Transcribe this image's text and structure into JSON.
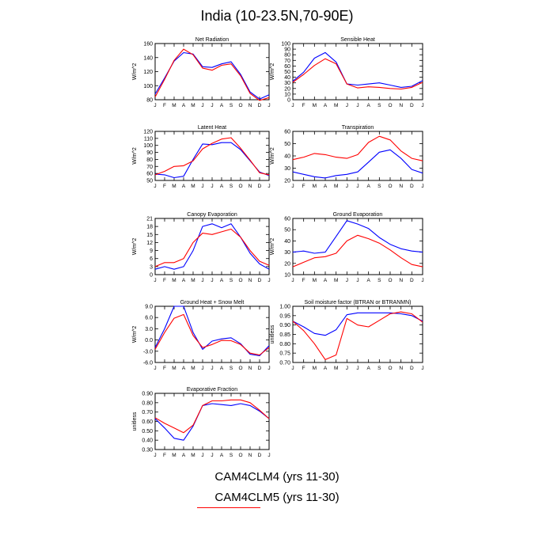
{
  "page": {
    "title": "India (10-23.5N,70-90E)",
    "legend": [
      {
        "label": "CAM4CLM4 (yrs 11-30)",
        "color": "#0000ff"
      },
      {
        "label": "CAM4CLM5 (yrs 11-30)",
        "color": "#ff0000"
      }
    ]
  },
  "chart_data": [
    {
      "type": "line",
      "title": "Net Radiation",
      "ylabel": "W/m^2",
      "x": [
        "J",
        "F",
        "M",
        "A",
        "M",
        "J",
        "J",
        "A",
        "S",
        "O",
        "N",
        "D",
        "J"
      ],
      "ylim": [
        80,
        160
      ],
      "yticks": [
        "80",
        "100",
        "120",
        "140",
        "160"
      ],
      "series": [
        {
          "color": "#0000ff",
          "values": [
            88,
            111,
            135,
            147,
            145,
            127,
            126,
            131,
            134,
            116,
            91,
            81,
            87
          ]
        },
        {
          "color": "#ff0000",
          "values": [
            84,
            109,
            136,
            152,
            144,
            125,
            122,
            129,
            131,
            114,
            89,
            79,
            83
          ]
        }
      ]
    },
    {
      "type": "line",
      "title": "Sensible Heat",
      "ylabel": "W/m^2",
      "x": [
        "J",
        "F",
        "M",
        "A",
        "M",
        "J",
        "J",
        "A",
        "S",
        "O",
        "N",
        "D",
        "J"
      ],
      "ylim": [
        0,
        100
      ],
      "yticks": [
        "0",
        "10",
        "20",
        "30",
        "40",
        "50",
        "60",
        "70",
        "80",
        "90",
        "100"
      ],
      "series": [
        {
          "color": "#0000ff",
          "values": [
            33,
            49,
            74,
            84,
            67,
            28,
            26,
            28,
            30,
            26,
            22,
            24,
            34
          ]
        },
        {
          "color": "#ff0000",
          "values": [
            31,
            45,
            61,
            73,
            64,
            28,
            21,
            23,
            22,
            20,
            19,
            22,
            31
          ]
        }
      ]
    },
    {
      "type": "line",
      "title": "Latent Heat",
      "ylabel": "W/m^2",
      "x": [
        "J",
        "F",
        "M",
        "A",
        "M",
        "J",
        "J",
        "A",
        "S",
        "O",
        "N",
        "D",
        "J"
      ],
      "ylim": [
        50,
        120
      ],
      "yticks": [
        "50",
        "60",
        "70",
        "80",
        "90",
        "100",
        "110",
        "120"
      ],
      "series": [
        {
          "color": "#0000ff",
          "values": [
            59,
            58,
            54,
            56,
            80,
            102,
            101,
            104,
            104,
            94,
            78,
            62,
            57
          ]
        },
        {
          "color": "#ff0000",
          "values": [
            58,
            63,
            70,
            71,
            78,
            95,
            103,
            109,
            111,
            96,
            79,
            61,
            58
          ]
        }
      ]
    },
    {
      "type": "line",
      "title": "Transpiration",
      "ylabel": "W/m^2",
      "x": [
        "J",
        "F",
        "M",
        "A",
        "M",
        "J",
        "J",
        "A",
        "S",
        "O",
        "N",
        "D",
        "J"
      ],
      "ylim": [
        20,
        60
      ],
      "yticks": [
        "20",
        "30",
        "40",
        "50",
        "60"
      ],
      "series": [
        {
          "color": "#0000ff",
          "values": [
            27,
            25,
            23,
            22,
            24,
            25,
            27,
            35,
            43,
            45,
            38,
            29,
            26
          ]
        },
        {
          "color": "#ff0000",
          "values": [
            37,
            39,
            42,
            41,
            39,
            38,
            41,
            51,
            56,
            53,
            44,
            38,
            36
          ]
        }
      ]
    },
    {
      "type": "line",
      "title": "Canopy Evaporation",
      "ylabel": "W/m^2",
      "x": [
        "J",
        "F",
        "M",
        "A",
        "M",
        "J",
        "J",
        "A",
        "S",
        "O",
        "N",
        "D",
        "J"
      ],
      "ylim": [
        0,
        21
      ],
      "yticks": [
        "0",
        "3",
        "6",
        "9",
        "12",
        "15",
        "18",
        "21"
      ],
      "series": [
        {
          "color": "#0000ff",
          "values": [
            2,
            3,
            2,
            3,
            9,
            18,
            19,
            17.5,
            19,
            14,
            8,
            4,
            2
          ]
        },
        {
          "color": "#ff0000",
          "values": [
            3,
            4.5,
            4.5,
            6,
            12,
            15.5,
            15,
            16,
            17,
            14,
            9,
            5,
            3.5
          ]
        }
      ]
    },
    {
      "type": "line",
      "title": "Ground Evaporation",
      "ylabel": "W/m^2",
      "x": [
        "J",
        "F",
        "M",
        "A",
        "M",
        "J",
        "J",
        "A",
        "S",
        "O",
        "N",
        "D",
        "J"
      ],
      "ylim": [
        10,
        60
      ],
      "yticks": [
        "10",
        "20",
        "30",
        "40",
        "50",
        "60"
      ],
      "series": [
        {
          "color": "#0000ff",
          "values": [
            30,
            31,
            29,
            30,
            44,
            58,
            55,
            51,
            43,
            37,
            33,
            31,
            30
          ]
        },
        {
          "color": "#ff0000",
          "values": [
            17,
            21,
            25,
            26,
            29,
            40,
            45,
            42,
            38,
            32,
            25,
            19,
            17
          ]
        }
      ]
    },
    {
      "type": "line",
      "title": "Ground Heat + Snow Melt",
      "ylabel": "W/m^2",
      "x": [
        "J",
        "F",
        "M",
        "A",
        "M",
        "J",
        "J",
        "A",
        "S",
        "O",
        "N",
        "D",
        "J"
      ],
      "ylim": [
        -6,
        9
      ],
      "yticks": [
        "-6.0",
        "-3.0",
        "0.0",
        "3.0",
        "6.0",
        "9.0"
      ],
      "series": [
        {
          "color": "#0000ff",
          "values": [
            -2,
            3,
            9,
            9,
            2,
            -2.5,
            -0.3,
            0.3,
            0.6,
            -1,
            -3.8,
            -4.2,
            -1.5
          ]
        },
        {
          "color": "#ff0000",
          "values": [
            -2.5,
            2,
            5.8,
            6.8,
            1.2,
            -2,
            -1.2,
            -0.1,
            -0.2,
            -1.2,
            -3.5,
            -4,
            -2
          ]
        }
      ]
    },
    {
      "type": "line",
      "title": "Soil moisture factor (BTRAN or BTRANMN)",
      "ylabel": "unitless",
      "x": [
        "J",
        "F",
        "M",
        "A",
        "M",
        "J",
        "J",
        "A",
        "S",
        "O",
        "N",
        "D",
        "J"
      ],
      "ylim": [
        0.7,
        1.0
      ],
      "yticks": [
        "0.70",
        "0.75",
        "0.80",
        "0.85",
        "0.90",
        "0.95",
        "1.00"
      ],
      "series": [
        {
          "color": "#0000ff",
          "values": [
            0.92,
            0.89,
            0.855,
            0.845,
            0.875,
            0.955,
            0.965,
            0.965,
            0.965,
            0.965,
            0.96,
            0.95,
            0.92
          ]
        },
        {
          "color": "#ff0000",
          "values": [
            0.92,
            0.87,
            0.8,
            0.715,
            0.74,
            0.935,
            0.9,
            0.89,
            0.925,
            0.96,
            0.97,
            0.96,
            0.915
          ]
        }
      ]
    },
    {
      "type": "line",
      "title": "Evaporative Fraction",
      "ylabel": "unitless",
      "x": [
        "J",
        "F",
        "M",
        "A",
        "M",
        "J",
        "J",
        "A",
        "S",
        "O",
        "N",
        "D",
        "J"
      ],
      "ylim": [
        0.3,
        0.9
      ],
      "yticks": [
        "0.30",
        "0.40",
        "0.50",
        "0.60",
        "0.70",
        "0.80",
        "0.90"
      ],
      "series": [
        {
          "color": "#0000ff",
          "values": [
            0.63,
            0.53,
            0.42,
            0.4,
            0.55,
            0.77,
            0.79,
            0.78,
            0.77,
            0.79,
            0.77,
            0.71,
            0.63
          ]
        },
        {
          "color": "#ff0000",
          "values": [
            0.64,
            0.58,
            0.53,
            0.48,
            0.56,
            0.77,
            0.82,
            0.82,
            0.83,
            0.83,
            0.8,
            0.72,
            0.63
          ]
        }
      ]
    }
  ]
}
